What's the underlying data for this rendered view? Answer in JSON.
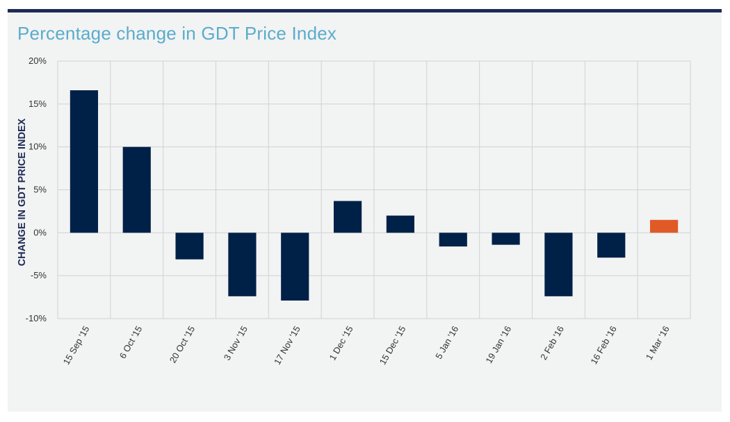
{
  "chart_data": {
    "type": "bar",
    "title": "Percentage change in GDT Price Index",
    "ylabel": "CHANGE IN GDT PRICE INDEX",
    "xlabel": "",
    "ylim": [
      -10,
      20
    ],
    "yticks": [
      20,
      15,
      10,
      5,
      0,
      -5,
      -10
    ],
    "ytick_labels": [
      "20%",
      "15%",
      "10%",
      "5%",
      "0%",
      "-5%",
      "-10%"
    ],
    "categories": [
      "15 Sep '15",
      "6 Oct '15",
      "20 Oct '15",
      "3 Nov '15",
      "17 Nov '15",
      "1 Dec '15",
      "15 Dec '15",
      "5 Jan '16",
      "19 Jan '16",
      "2 Feb '16",
      "16 Feb '16",
      "1 Mar '16"
    ],
    "values": [
      16.6,
      10.0,
      -3.1,
      -7.4,
      -7.9,
      3.7,
      2.0,
      -1.6,
      -1.4,
      -7.4,
      -2.9,
      1.5
    ],
    "colors": {
      "default": "#002147",
      "highlight": "#e05a28",
      "highlight_index": 11
    },
    "grid": true
  }
}
